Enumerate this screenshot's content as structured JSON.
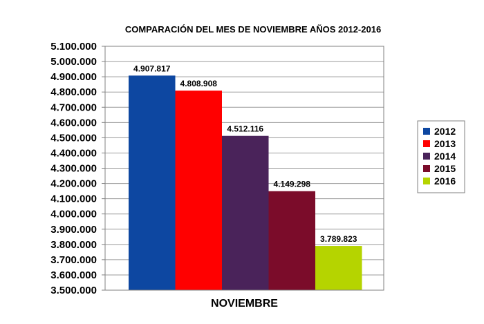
{
  "chart_data": {
    "type": "bar",
    "title": "COMPARACIÓN DEL MES DE NOVIEMBRE AÑOS 2012-2016",
    "categories": [
      "NOVIEMBRE"
    ],
    "series": [
      {
        "name": "2012",
        "values": [
          4907817
        ],
        "label": "4.907.817",
        "color": "#0d47a1"
      },
      {
        "name": "2013",
        "values": [
          4808908
        ],
        "label": "4.808.908",
        "color": "#ff0000"
      },
      {
        "name": "2014",
        "values": [
          4512116
        ],
        "label": "4.512.116",
        "color": "#4a235a"
      },
      {
        "name": "2015",
        "values": [
          4149298
        ],
        "label": "4.149.298",
        "color": "#7b0c2a"
      },
      {
        "name": "2016",
        "values": [
          3789823
        ],
        "label": "3.789.823",
        "color": "#b5d400"
      }
    ],
    "ylim": [
      3500000,
      5100000
    ],
    "yticks": [
      {
        "value": 5100000,
        "label": "5.100.000"
      },
      {
        "value": 5000000,
        "label": "5.000.000"
      },
      {
        "value": 4900000,
        "label": "4.900.000"
      },
      {
        "value": 4800000,
        "label": "4.800.000"
      },
      {
        "value": 4700000,
        "label": "4.700.000"
      },
      {
        "value": 4600000,
        "label": "4.600.000"
      },
      {
        "value": 4500000,
        "label": "4.500.000"
      },
      {
        "value": 4400000,
        "label": "4.400.000"
      },
      {
        "value": 4300000,
        "label": "4.300.000"
      },
      {
        "value": 4200000,
        "label": "4.200.000"
      },
      {
        "value": 4100000,
        "label": "4.100.000"
      },
      {
        "value": 4000000,
        "label": "4.000.000"
      },
      {
        "value": 3900000,
        "label": "3.900.000"
      },
      {
        "value": 3800000,
        "label": "3.800.000"
      },
      {
        "value": 3700000,
        "label": "3.700.000"
      },
      {
        "value": 3600000,
        "label": "3.600.000"
      },
      {
        "value": 3500000,
        "label": "3.500.000"
      }
    ],
    "grid": true,
    "legend_position": "right"
  }
}
